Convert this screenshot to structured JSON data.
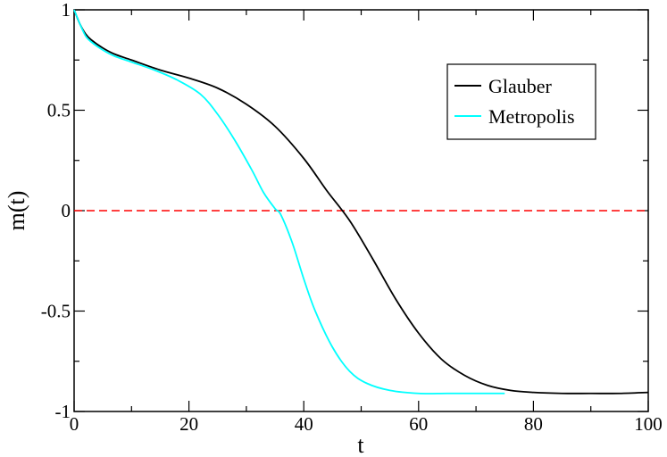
{
  "chart_data": {
    "type": "line",
    "title": "",
    "xlabel": "t",
    "ylabel": "m(t)",
    "xlim": [
      0,
      100
    ],
    "ylim": [
      -1,
      1
    ],
    "xticks": [
      0,
      20,
      40,
      60,
      80,
      100
    ],
    "xtick_labels": [
      "0",
      "20",
      "40",
      "60",
      "80",
      "100"
    ],
    "yticks": [
      -1,
      -0.5,
      0,
      0.5,
      1
    ],
    "ytick_labels": [
      "-1",
      "-0.5",
      "0",
      "0.5",
      "1"
    ],
    "grid": false,
    "legend_position": "top-right",
    "series": [
      {
        "name": "Glauber",
        "color": "#000000",
        "x": [
          0,
          1,
          2,
          3,
          5,
          7,
          10,
          15,
          20,
          25,
          30,
          35,
          40,
          44,
          48,
          52,
          56,
          60,
          64,
          68,
          72,
          76,
          80,
          85,
          90,
          95,
          100
        ],
        "y": [
          1.0,
          0.93,
          0.88,
          0.85,
          0.81,
          0.78,
          0.75,
          0.7,
          0.66,
          0.61,
          0.53,
          0.42,
          0.26,
          0.1,
          -0.05,
          -0.24,
          -0.44,
          -0.61,
          -0.74,
          -0.82,
          -0.87,
          -0.895,
          -0.905,
          -0.91,
          -0.91,
          -0.91,
          -0.905
        ]
      },
      {
        "name": "Metropolis",
        "color": "#00ffff",
        "x": [
          0,
          1,
          2,
          3,
          5,
          7,
          10,
          14,
          18,
          22,
          25,
          28,
          31,
          33,
          35,
          36,
          38,
          40,
          42,
          45,
          48,
          51,
          55,
          60,
          65,
          70,
          75
        ],
        "y": [
          1.0,
          0.93,
          0.87,
          0.84,
          0.8,
          0.77,
          0.74,
          0.7,
          0.65,
          0.58,
          0.48,
          0.35,
          0.2,
          0.09,
          0.01,
          -0.02,
          -0.16,
          -0.34,
          -0.5,
          -0.68,
          -0.8,
          -0.86,
          -0.895,
          -0.91,
          -0.91,
          -0.91,
          -0.91
        ]
      }
    ],
    "reference_lines": [
      {
        "y": 0,
        "color": "#ff0000",
        "style": "dashed"
      }
    ]
  }
}
